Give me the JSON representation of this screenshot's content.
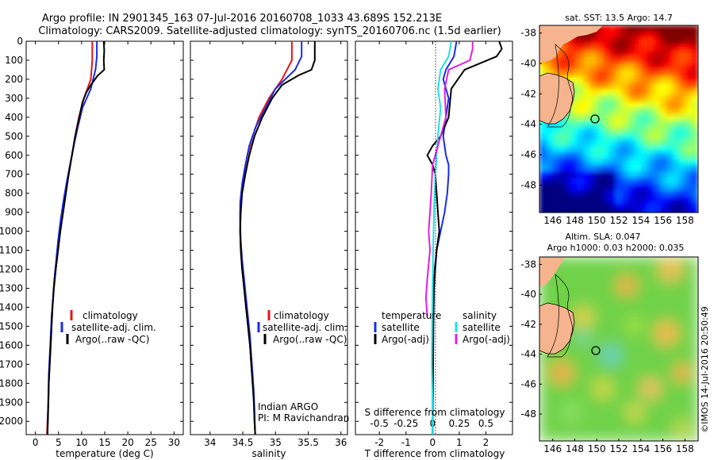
{
  "header": {
    "line1": "Argo profile: IN 2901345_163 07-Jul-2016 20160708_1033 43.689S 152.213E",
    "line2": "Climatology: CARS2009. Satellite-adjusted climatology: synTS_20160706.nc (1.5d earlier)"
  },
  "colors": {
    "climatology": "#e8141a",
    "satellite": "#1a2ce6",
    "argo": "#000000",
    "sat_salinity": "#1fe0e8",
    "argo_salinity": "#e020e0"
  },
  "chart_data": [
    {
      "id": "temperature",
      "type": "line",
      "xlabel": "temperature (deg C)",
      "ylabel": "",
      "xlim": [
        -2,
        32
      ],
      "ylim": [
        2070,
        0
      ],
      "xticks": [
        0,
        5,
        10,
        15,
        20,
        25,
        30
      ],
      "yticks": [
        0,
        100,
        200,
        300,
        400,
        500,
        600,
        700,
        800,
        900,
        1000,
        1100,
        1200,
        1300,
        1400,
        1500,
        1600,
        1700,
        1800,
        1900,
        2000
      ],
      "legend": [
        "climatology",
        "satellite-adj. clim.",
        "Argo(..raw -QC)"
      ],
      "series": [
        {
          "name": "climatology",
          "color": "#e8141a",
          "points": [
            [
              12.3,
              0
            ],
            [
              12.3,
              100
            ],
            [
              12.0,
              200
            ],
            [
              10.5,
              300
            ],
            [
              9.4,
              400
            ],
            [
              8.6,
              500
            ],
            [
              7.9,
              600
            ],
            [
              7.2,
              700
            ],
            [
              6.5,
              800
            ],
            [
              5.9,
              900
            ],
            [
              5.3,
              1000
            ],
            [
              4.9,
              1100
            ],
            [
              4.4,
              1200
            ],
            [
              4.0,
              1300
            ],
            [
              3.7,
              1400
            ],
            [
              3.5,
              1500
            ],
            [
              3.3,
              1600
            ],
            [
              3.1,
              1700
            ],
            [
              2.9,
              1800
            ],
            [
              2.8,
              1900
            ],
            [
              2.6,
              2000
            ],
            [
              2.5,
              2070
            ]
          ]
        },
        {
          "name": "satellite-adj. clim.",
          "color": "#1a2ce6",
          "points": [
            [
              13.3,
              0
            ],
            [
              13.3,
              80
            ],
            [
              13.0,
              150
            ],
            [
              12.0,
              250
            ],
            [
              10.2,
              350
            ],
            [
              9.2,
              450
            ],
            [
              8.3,
              550
            ],
            [
              7.5,
              650
            ],
            [
              6.7,
              750
            ],
            [
              6.0,
              850
            ],
            [
              5.4,
              950
            ],
            [
              4.9,
              1050
            ],
            [
              4.5,
              1150
            ],
            [
              4.1,
              1250
            ],
            [
              3.8,
              1350
            ],
            [
              3.5,
              1450
            ],
            [
              3.3,
              1550
            ],
            [
              3.1,
              1650
            ],
            [
              2.9,
              1750
            ],
            [
              2.8,
              1850
            ],
            [
              2.7,
              1950
            ],
            [
              2.6,
              2070
            ]
          ]
        },
        {
          "name": "Argo(..raw -QC)",
          "color": "#000000",
          "points": [
            [
              14.8,
              0
            ],
            [
              14.9,
              50
            ],
            [
              14.8,
              100
            ],
            [
              14.9,
              150
            ],
            [
              13.5,
              180
            ],
            [
              12.0,
              230
            ],
            [
              11.0,
              270
            ],
            [
              10.2,
              320
            ],
            [
              9.5,
              400
            ],
            [
              8.6,
              500
            ],
            [
              7.9,
              600
            ],
            [
              7.2,
              700
            ],
            [
              6.6,
              800
            ],
            [
              6.0,
              900
            ],
            [
              5.4,
              1000
            ],
            [
              4.9,
              1100
            ],
            [
              4.4,
              1200
            ],
            [
              4.0,
              1300
            ],
            [
              3.7,
              1400
            ],
            [
              3.5,
              1500
            ],
            [
              3.3,
              1600
            ],
            [
              3.1,
              1700
            ],
            [
              2.9,
              1800
            ],
            [
              2.8,
              1900
            ],
            [
              2.7,
              2000
            ],
            [
              2.6,
              2070
            ]
          ]
        }
      ]
    },
    {
      "id": "salinity",
      "type": "line",
      "xlabel": "salinity",
      "ylabel": "",
      "xlim": [
        33.7,
        36.1
      ],
      "ylim": [
        2070,
        0
      ],
      "xticks": [
        34,
        34.5,
        35,
        35.5,
        36
      ],
      "legend": [
        "climatology",
        "satellite-adj. clim.",
        "Argo(..raw -QC)"
      ],
      "annotation": [
        "Indian ARGO",
        "PI: M Ravichandran"
      ],
      "series": [
        {
          "name": "climatology",
          "color": "#e8141a",
          "points": [
            [
              35.25,
              0
            ],
            [
              35.25,
              100
            ],
            [
              35.1,
              200
            ],
            [
              34.9,
              300
            ],
            [
              34.75,
              400
            ],
            [
              34.65,
              500
            ],
            [
              34.57,
              600
            ],
            [
              34.52,
              700
            ],
            [
              34.48,
              800
            ],
            [
              34.46,
              900
            ],
            [
              34.46,
              1000
            ],
            [
              34.47,
              1100
            ],
            [
              34.49,
              1200
            ],
            [
              34.52,
              1300
            ],
            [
              34.55,
              1400
            ],
            [
              34.58,
              1500
            ],
            [
              34.61,
              1600
            ],
            [
              34.63,
              1700
            ],
            [
              34.65,
              1800
            ],
            [
              34.67,
              1900
            ],
            [
              34.68,
              2000
            ],
            [
              34.69,
              2070
            ]
          ]
        },
        {
          "name": "satellite-adj. clim.",
          "color": "#1a2ce6",
          "points": [
            [
              35.4,
              0
            ],
            [
              35.4,
              80
            ],
            [
              35.3,
              150
            ],
            [
              35.0,
              250
            ],
            [
              34.85,
              350
            ],
            [
              34.7,
              450
            ],
            [
              34.6,
              550
            ],
            [
              34.54,
              650
            ],
            [
              34.49,
              750
            ],
            [
              34.46,
              850
            ],
            [
              34.46,
              950
            ],
            [
              34.47,
              1050
            ],
            [
              34.49,
              1150
            ],
            [
              34.52,
              1250
            ],
            [
              34.55,
              1350
            ],
            [
              34.58,
              1450
            ],
            [
              34.61,
              1550
            ],
            [
              34.63,
              1650
            ],
            [
              34.65,
              1750
            ],
            [
              34.67,
              1850
            ],
            [
              34.68,
              1950
            ],
            [
              34.69,
              2070
            ]
          ]
        },
        {
          "name": "Argo(..raw -QC)",
          "color": "#000000",
          "points": [
            [
              35.6,
              0
            ],
            [
              35.6,
              100
            ],
            [
              35.55,
              150
            ],
            [
              35.35,
              180
            ],
            [
              35.1,
              230
            ],
            [
              34.95,
              300
            ],
            [
              34.8,
              400
            ],
            [
              34.68,
              500
            ],
            [
              34.6,
              600
            ],
            [
              34.54,
              700
            ],
            [
              34.49,
              800
            ],
            [
              34.47,
              900
            ],
            [
              34.46,
              1000
            ],
            [
              34.47,
              1100
            ],
            [
              34.49,
              1200
            ],
            [
              34.52,
              1300
            ],
            [
              34.55,
              1400
            ],
            [
              34.58,
              1500
            ],
            [
              34.61,
              1600
            ],
            [
              34.63,
              1700
            ],
            [
              34.65,
              1800
            ],
            [
              34.67,
              1900
            ],
            [
              34.68,
              2000
            ],
            [
              34.69,
              2070
            ]
          ]
        }
      ]
    },
    {
      "id": "difference",
      "type": "line",
      "xlabel": "T difference from climatology",
      "top_label": "S difference from climatology",
      "xlim": [
        -2.9,
        3.0
      ],
      "ylim": [
        2070,
        0
      ],
      "xticks_T": [
        -2,
        -1,
        0,
        1,
        2
      ],
      "xticks_S_labels": [
        "-0.5",
        "-0.25",
        "0",
        "0.25",
        "0.5"
      ],
      "xticks_S_positions_T": [
        -2,
        -1,
        0,
        1,
        2
      ],
      "legend_titles": [
        "temperature",
        "salinity"
      ],
      "legend": [
        "satellite",
        "Argo(-adj)",
        "satellite",
        "Argo(-adj)"
      ],
      "series": [
        {
          "name": "temperature satellite",
          "color": "#1a2ce6",
          "points": [
            [
              0.9,
              0
            ],
            [
              0.8,
              80
            ],
            [
              0.5,
              150
            ],
            [
              0.4,
              200
            ],
            [
              0.6,
              300
            ],
            [
              0.5,
              400
            ],
            [
              0.4,
              500
            ],
            [
              0.5,
              600
            ],
            [
              0.6,
              650
            ],
            [
              0.6,
              700
            ],
            [
              0.55,
              800
            ],
            [
              0.45,
              900
            ],
            [
              0.3,
              1000
            ],
            [
              0.15,
              1100
            ],
            [
              0.1,
              1200
            ],
            [
              0.05,
              1300
            ],
            [
              0.02,
              1500
            ],
            [
              0.01,
              1700
            ],
            [
              0.0,
              1900
            ],
            [
              0.0,
              2070
            ]
          ]
        },
        {
          "name": "temperature Argo(-adj)",
          "color": "#000000",
          "points": [
            [
              2.5,
              0
            ],
            [
              2.6,
              40
            ],
            [
              2.4,
              80
            ],
            [
              1.2,
              150
            ],
            [
              0.7,
              250
            ],
            [
              0.6,
              400
            ],
            [
              0.3,
              500
            ],
            [
              0.0,
              550
            ],
            [
              -0.2,
              600
            ],
            [
              0.0,
              650
            ],
            [
              0.1,
              700
            ],
            [
              0.15,
              800
            ],
            [
              0.2,
              900
            ],
            [
              0.25,
              1000
            ],
            [
              0.15,
              1100
            ],
            [
              0.08,
              1200
            ],
            [
              0.05,
              1300
            ],
            [
              0.03,
              1500
            ],
            [
              0.02,
              1700
            ],
            [
              0.01,
              1900
            ],
            [
              0.0,
              2070
            ]
          ]
        },
        {
          "name": "salinity satellite",
          "color": "#1fe0e8",
          "points": [
            [
              0.7,
              0
            ],
            [
              0.6,
              80
            ],
            [
              0.3,
              150
            ],
            [
              0.2,
              250
            ],
            [
              0.3,
              350
            ],
            [
              0.2,
              500
            ],
            [
              0.1,
              700
            ],
            [
              0.05,
              900
            ],
            [
              0.02,
              1100
            ],
            [
              0.0,
              1300
            ],
            [
              -0.02,
              1500
            ],
            [
              -0.03,
              1700
            ],
            [
              0.0,
              1900
            ],
            [
              0.0,
              2070
            ]
          ]
        },
        {
          "name": "salinity Argo(-adj)",
          "color": "#e020e0",
          "points": [
            [
              1.5,
              0
            ],
            [
              1.5,
              40
            ],
            [
              1.4,
              100
            ],
            [
              0.6,
              150
            ],
            [
              0.45,
              250
            ],
            [
              0.5,
              400
            ],
            [
              0.3,
              500
            ],
            [
              0.0,
              650
            ],
            [
              -0.05,
              800
            ],
            [
              -0.1,
              900
            ],
            [
              -0.15,
              1000
            ],
            [
              -0.1,
              1100
            ],
            [
              -0.2,
              1250
            ],
            [
              -0.25,
              1350
            ],
            [
              -0.2,
              1450
            ]
          ]
        }
      ]
    },
    {
      "id": "sst_map",
      "type": "heatmap",
      "title": "sat. SST: 13.5  Argo: 14.7",
      "xticks": [
        146,
        148,
        150,
        152,
        154,
        156,
        158
      ],
      "yticks": [
        -38,
        -40,
        -42,
        -44,
        -46,
        -48
      ],
      "marker": [
        152.2,
        -43.7
      ]
    },
    {
      "id": "sla_map",
      "type": "heatmap",
      "title": "Altim. SLA: 0.047",
      "subtitle": "Argo h1000: 0.03 h2000: 0.035",
      "xticks": [
        146,
        148,
        150,
        152,
        154,
        156,
        158
      ],
      "yticks": [
        -38,
        -40,
        -42,
        -44,
        -46,
        -48
      ],
      "marker": [
        152.2,
        -43.7
      ]
    }
  ],
  "footer": {
    "credit": "©IMOS 14-Jul-2016 20:50:49"
  }
}
